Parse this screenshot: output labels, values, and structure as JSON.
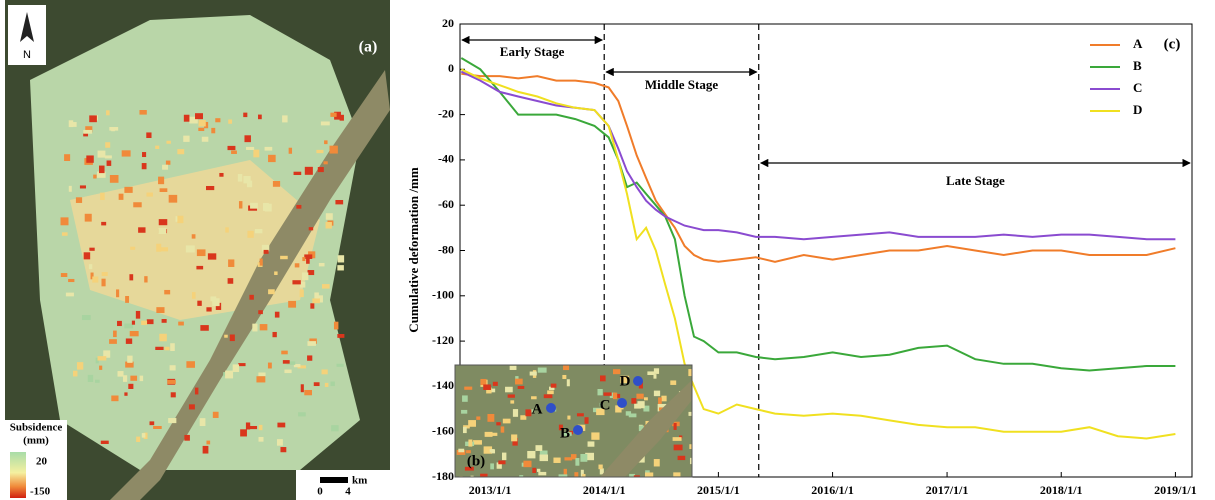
{
  "map_panel": {
    "label": "(a)",
    "north": "N",
    "legend_title": [
      "Subsidence",
      "(mm)"
    ],
    "legend_max": "20",
    "legend_min": "-150",
    "scale_unit": "km",
    "scale_start": "0",
    "scale_end": "4"
  },
  "inset": {
    "label": "(b)",
    "points": [
      "A",
      "B",
      "C",
      "D"
    ]
  },
  "chart_data": {
    "type": "line",
    "panel_label": "(c)",
    "y_label": "Cumulative deformation /mm",
    "x": [
      "2012-10-01",
      "2012-12-01",
      "2013-02-01",
      "2013-04-01",
      "2013-06-01",
      "2013-08-01",
      "2013-10-01",
      "2013-12-01",
      "2014-01-15",
      "2014-02-15",
      "2014-03-15",
      "2014-04-15",
      "2014-05-15",
      "2014-06-15",
      "2014-07-15",
      "2014-08-15",
      "2014-09-15",
      "2014-10-15",
      "2014-11-15",
      "2015-01-01",
      "2015-03-01",
      "2015-05-01",
      "2015-07-01",
      "2015-10-01",
      "2016-01-01",
      "2016-04-01",
      "2016-07-01",
      "2016-10-01",
      "2017-01-01",
      "2017-04-01",
      "2017-07-01",
      "2017-10-01",
      "2018-01-01",
      "2018-04-01",
      "2018-07-01",
      "2018-10-01",
      "2019-01-01"
    ],
    "series": [
      {
        "name": "A",
        "color": "#f07c2a",
        "values": [
          -2,
          -3,
          -3,
          -4,
          -3,
          -5,
          -5,
          -6,
          -8,
          -14,
          -25,
          -38,
          -48,
          -58,
          -64,
          -70,
          -78,
          -82,
          -84,
          -85,
          -84,
          -83,
          -85,
          -82,
          -84,
          -82,
          -80,
          -80,
          -78,
          -80,
          -82,
          -80,
          -80,
          -82,
          -82,
          -82,
          -79
        ]
      },
      {
        "name": "B",
        "color": "#3aa83a",
        "values": [
          5,
          0,
          -10,
          -20,
          -20,
          -20,
          -22,
          -25,
          -30,
          -40,
          -52,
          -50,
          -55,
          -60,
          -65,
          -75,
          -100,
          -118,
          -120,
          -125,
          -125,
          -127,
          -128,
          -127,
          -125,
          -127,
          -126,
          -123,
          -122,
          -128,
          -130,
          -130,
          -132,
          -133,
          -132,
          -131,
          -131
        ]
      },
      {
        "name": "C",
        "color": "#8a4bd0",
        "values": [
          -1,
          -5,
          -10,
          -12,
          -14,
          -16,
          -17,
          -18,
          -25,
          -35,
          -45,
          -52,
          -58,
          -62,
          -65,
          -67,
          -69,
          -70,
          -71,
          -71,
          -72,
          -74,
          -74,
          -75,
          -74,
          -73,
          -72,
          -74,
          -74,
          -74,
          -73,
          -74,
          -73,
          -73,
          -74,
          -75,
          -75
        ]
      },
      {
        "name": "D",
        "color": "#f0e020",
        "values": [
          0,
          -4,
          -7,
          -10,
          -12,
          -15,
          -17,
          -18,
          -25,
          -40,
          -55,
          -75,
          -70,
          -80,
          -95,
          -110,
          -130,
          -140,
          -150,
          -152,
          -148,
          -150,
          -152,
          -153,
          -152,
          -153,
          -155,
          -157,
          -158,
          -158,
          -160,
          -160,
          -160,
          -158,
          -162,
          -163,
          -161
        ]
      }
    ],
    "xlim": [
      "2012-09-27",
      "2019-02-23"
    ],
    "xticks": [
      {
        "value": "2013-01-01",
        "label": "2013/1/1"
      },
      {
        "value": "2014-01-01",
        "label": "2014/1/1"
      },
      {
        "value": "2015-01-01",
        "label": "2015/1/1"
      },
      {
        "value": "2016-01-01",
        "label": "2016/1/1"
      },
      {
        "value": "2017-01-01",
        "label": "2017/1/1"
      },
      {
        "value": "2018-01-01",
        "label": "2018/1/1"
      },
      {
        "value": "2019-01-01",
        "label": "2019/1/1"
      }
    ],
    "ylim": [
      -180,
      20
    ],
    "yticks": [
      20,
      0,
      -20,
      -40,
      -60,
      -80,
      -100,
      -120,
      -140,
      -160,
      -180
    ],
    "legend": "upper right",
    "stages": [
      {
        "label": "Early Stage",
        "start": "2012-09-27",
        "end": "2014-01-01"
      },
      {
        "label": "Middle Stage",
        "start": "2014-01-01",
        "end": "2015-05-10"
      },
      {
        "label": "Late Stage",
        "start": "2015-05-10",
        "end": "2019-02-23"
      }
    ]
  }
}
